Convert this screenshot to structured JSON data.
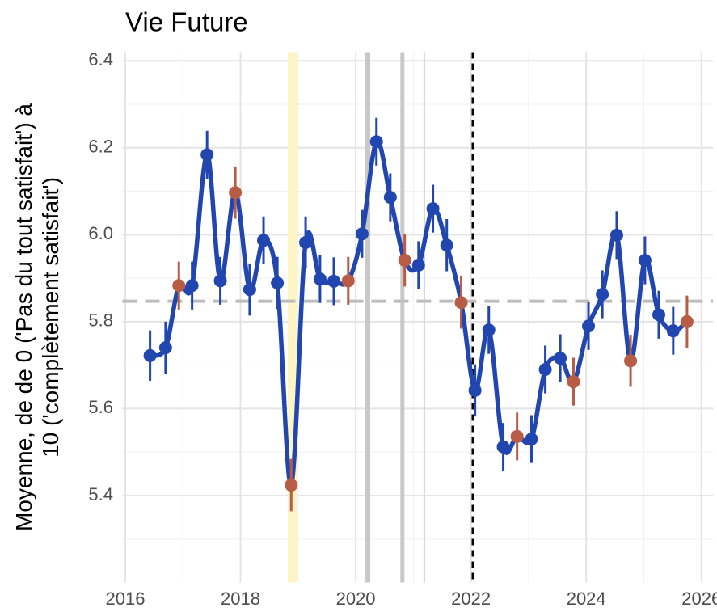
{
  "chart_data": {
    "type": "line",
    "title": "Vie Future",
    "y_label": [
      "Moyenne, de de 0 ('Pas du tout satisfait') à",
      "10 ('complètement satisfait')"
    ],
    "x": [
      2016.43,
      2016.7,
      2016.93,
      2017.16,
      2017.42,
      2017.65,
      2017.91,
      2018.16,
      2018.4,
      2018.64,
      2018.88,
      2019.13,
      2019.38,
      2019.62,
      2019.87,
      2020.11,
      2020.36,
      2020.6,
      2020.85,
      2021.09,
      2021.34,
      2021.58,
      2021.83,
      2022.07,
      2022.31,
      2022.56,
      2022.8,
      2023.05,
      2023.29,
      2023.55,
      2023.78,
      2024.04,
      2024.28,
      2024.53,
      2024.77,
      2025.02,
      2025.26,
      2025.51,
      2025.75
    ],
    "series": [
      {
        "color": "#2246b0",
        "values": [
          5.722,
          5.74,
          5.883,
          5.883,
          6.184,
          5.894,
          6.097,
          5.874,
          5.987,
          5.889,
          5.424,
          5.982,
          5.898,
          5.893,
          5.894,
          6.002,
          6.214,
          6.086,
          5.941,
          5.93,
          6.06,
          5.976,
          5.844,
          5.642,
          5.781,
          5.512,
          5.536,
          5.53,
          5.69,
          5.716,
          5.662,
          5.79,
          5.863,
          5.999,
          5.71,
          5.941,
          5.816,
          5.779,
          5.8
        ],
        "errors": [
          0.058,
          0.06,
          0.055,
          0.055,
          0.055,
          0.055,
          0.06,
          0.06,
          0.055,
          0.06,
          0.06,
          0.06,
          0.055,
          0.055,
          0.055,
          0.055,
          0.055,
          0.055,
          0.06,
          0.055,
          0.055,
          0.06,
          0.06,
          0.06,
          0.055,
          0.055,
          0.055,
          0.055,
          0.055,
          0.055,
          0.055,
          0.055,
          0.055,
          0.055,
          0.06,
          0.055,
          0.055,
          0.055,
          0.06
        ],
        "point_colors": [
          "#2246b0",
          "#2246b0",
          "#b85c45",
          "#2246b0",
          "#2246b0",
          "#2246b0",
          "#b85c45",
          "#2246b0",
          "#2246b0",
          "#2246b0",
          "#b85c45",
          "#2246b0",
          "#2246b0",
          "#2246b0",
          "#b85c45",
          "#2246b0",
          "#2246b0",
          "#2246b0",
          "#b85c45",
          "#2246b0",
          "#2246b0",
          "#2246b0",
          "#b85c45",
          "#2246b0",
          "#2246b0",
          "#2246b0",
          "#b85c45",
          "#2246b0",
          "#2246b0",
          "#2246b0",
          "#b85c45",
          "#2246b0",
          "#2246b0",
          "#2246b0",
          "#b85c45",
          "#2246b0",
          "#2246b0",
          "#2246b0",
          "#b85c45"
        ]
      }
    ],
    "hline": 5.847,
    "band": [
      2018.82,
      2018.99
    ],
    "band_color": "#fdf5c4",
    "vlines": [
      {
        "x": 2020.21,
        "color": "#c8c8c8",
        "width": 6
      },
      {
        "x": 2020.81,
        "color": "#c8c8c8",
        "width": 5
      },
      {
        "x": 2021.19,
        "color": "#d4d4d4",
        "width": 2
      }
    ],
    "vline_dashed": 2022.03,
    "xlim": [
      2015.95,
      2026.2
    ],
    "xticks": [
      2016,
      2018,
      2020,
      2022,
      2024,
      2026
    ],
    "xminor": [
      2017,
      2019,
      2021,
      2023,
      2025
    ],
    "ylim": [
      5.2,
      6.42
    ],
    "yticks": [
      5.4,
      5.6,
      5.8,
      {
        "value": 6,
        "label": "6.0"
      },
      6.2,
      6.4
    ],
    "yminor": [
      5.3,
      5.5,
      5.7,
      5.9,
      6.1,
      6.3
    ],
    "grid": true
  }
}
